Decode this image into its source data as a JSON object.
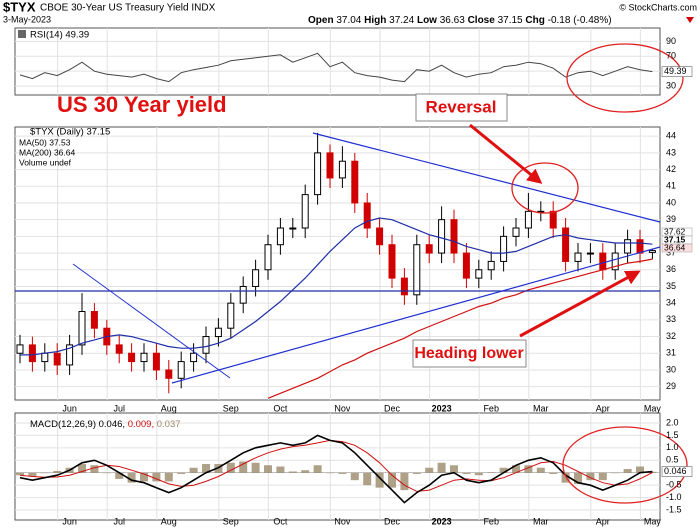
{
  "chart_data": {
    "type": "candlestick",
    "symbol": "$TYX",
    "title": "CBOE 30-Year US Treasury Yield INDX",
    "source": "© StockCharts.com",
    "date": "3-May-2023",
    "quote": [
      {
        "label": "Open",
        "value": 37.04
      },
      {
        "label": "High",
        "value": 37.24
      },
      {
        "label": "Low",
        "value": 36.63
      },
      {
        "label": "Close",
        "value": 37.15
      },
      {
        "label": "Chg",
        "value": "-0.18 (-0.48%)"
      }
    ],
    "categories": [
      null,
      null,
      null,
      null,
      "Jun",
      null,
      null,
      null,
      "Jul",
      null,
      null,
      null,
      "Aug",
      null,
      null,
      null,
      null,
      "Sep",
      null,
      null,
      null,
      "Oct",
      null,
      null,
      null,
      null,
      "Nov",
      null,
      null,
      null,
      "Dec",
      null,
      null,
      null,
      "2023",
      null,
      null,
      null,
      "Feb",
      null,
      null,
      null,
      "Mar",
      null,
      null,
      null,
      null,
      "Apr",
      null,
      null,
      null,
      "May"
    ],
    "open": [
      31.0,
      31.5,
      30.5,
      31.0,
      30.3,
      31.5,
      33.5,
      32.5,
      31.5,
      31.0,
      30.5,
      31.0,
      30.0,
      29.5,
      30.5,
      31.0,
      32.0,
      32.5,
      34.0,
      35.0,
      36.0,
      37.5,
      38.5,
      38.5,
      40.5,
      43.0,
      41.5,
      42.5,
      40.0,
      38.5,
      37.5,
      35.5,
      34.5,
      37.5,
      37.0,
      39.0,
      37.0,
      35.5,
      36.0,
      36.5,
      38.0,
      38.5,
      39.5,
      39.5,
      38.5,
      36.5,
      37.0,
      37.0,
      36.0,
      37.0,
      37.8,
      37.04
    ],
    "high": [
      32.1,
      32.0,
      31.6,
      31.6,
      32.1,
      34.6,
      34.0,
      33.0,
      32.1,
      31.6,
      31.6,
      31.6,
      30.6,
      31.1,
      31.6,
      32.6,
      33.1,
      34.6,
      35.6,
      36.6,
      38.1,
      39.1,
      39.1,
      41.1,
      44.2,
      43.5,
      43.4,
      43.0,
      40.6,
      39.1,
      38.1,
      36.1,
      38.1,
      38.1,
      39.8,
      39.6,
      37.6,
      36.6,
      37.1,
      38.6,
      39.1,
      40.6,
      40.1,
      40.1,
      39.1,
      37.6,
      37.6,
      37.6,
      37.6,
      38.4,
      38.4,
      37.24
    ],
    "low": [
      30.4,
      29.9,
      29.9,
      29.7,
      29.7,
      30.9,
      31.9,
      30.9,
      30.4,
      29.9,
      29.9,
      29.4,
      28.6,
      28.9,
      29.9,
      30.4,
      31.4,
      31.9,
      33.4,
      34.4,
      35.4,
      36.9,
      37.9,
      37.9,
      39.9,
      40.9,
      40.9,
      39.4,
      37.9,
      36.9,
      34.9,
      33.9,
      33.9,
      36.4,
      36.4,
      36.4,
      34.9,
      34.9,
      35.4,
      35.9,
      37.4,
      37.9,
      38.9,
      37.9,
      35.9,
      35.9,
      36.4,
      35.4,
      35.4,
      36.4,
      36.4,
      36.63
    ],
    "close": [
      31.5,
      30.5,
      31.0,
      30.3,
      31.5,
      33.5,
      32.5,
      31.5,
      31.0,
      30.5,
      31.0,
      30.0,
      29.5,
      30.5,
      31.0,
      32.0,
      32.5,
      34.0,
      35.0,
      36.0,
      37.5,
      38.5,
      38.5,
      40.5,
      43.0,
      41.5,
      42.5,
      40.0,
      38.5,
      37.5,
      35.5,
      34.5,
      37.5,
      37.0,
      39.0,
      37.0,
      35.5,
      36.0,
      36.5,
      38.0,
      38.5,
      39.5,
      39.5,
      38.5,
      36.5,
      37.0,
      37.0,
      36.0,
      37.0,
      37.8,
      37.0,
      37.15
    ],
    "up_color": "#000000",
    "down_color": "#d00000",
    "price_legend": "$TYX (Daily) 37.15",
    "volume_label": "Volume undef",
    "series": [
      {
        "name": "MA(50) 37.53",
        "color": "#1f2fa8",
        "values": [
          30.9,
          30.9,
          31.0,
          31.1,
          31.3,
          31.6,
          31.8,
          32.0,
          32.1,
          32.0,
          31.8,
          31.6,
          31.4,
          31.3,
          31.3,
          31.4,
          31.6,
          31.9,
          32.4,
          32.9,
          33.5,
          34.1,
          34.8,
          35.5,
          36.3,
          37.1,
          37.8,
          38.5,
          38.9,
          39.1,
          39.0,
          38.7,
          38.4,
          38.1,
          37.9,
          37.7,
          37.4,
          37.2,
          37.0,
          37.0,
          37.1,
          37.4,
          37.7,
          38.0,
          38.1,
          37.9,
          37.8,
          37.7,
          37.6,
          37.6,
          37.6,
          37.53
        ]
      },
      {
        "name": "MA(200) 36.64",
        "color": "#d01010",
        "values": [
          null,
          null,
          null,
          null,
          null,
          null,
          null,
          null,
          null,
          null,
          null,
          null,
          null,
          null,
          null,
          null,
          null,
          null,
          null,
          null,
          28.3,
          28.6,
          28.9,
          29.2,
          29.5,
          29.9,
          30.3,
          30.6,
          31.0,
          31.3,
          31.6,
          31.9,
          32.3,
          32.6,
          32.9,
          33.2,
          33.5,
          33.8,
          34.0,
          34.3,
          34.5,
          34.8,
          35.0,
          35.2,
          35.4,
          35.6,
          35.8,
          36.0,
          36.2,
          36.4,
          36.5,
          36.64
        ]
      }
    ],
    "ylim": [
      28.2,
      44.55
    ],
    "yticks": [
      29,
      30,
      31,
      32,
      33,
      34,
      35,
      36,
      37,
      38,
      39,
      40,
      41,
      42,
      43,
      44
    ],
    "price_labels": [
      "37.62",
      "37.15",
      "36.64"
    ],
    "annotations": [
      "US 30 Year yield",
      "Reversal",
      "Heading lower"
    ],
    "rsi": {
      "type": "line",
      "label": "RSI(14) 49.39",
      "color": "#444444",
      "values": [
        45,
        40,
        48,
        44,
        52,
        62,
        50,
        46,
        44,
        42,
        46,
        40,
        36,
        48,
        52,
        55,
        58,
        64,
        66,
        68,
        70,
        72,
        62,
        68,
        74,
        56,
        62,
        48,
        44,
        42,
        38,
        36,
        52,
        50,
        58,
        48,
        42,
        46,
        48,
        56,
        58,
        62,
        60,
        54,
        42,
        48,
        50,
        44,
        50,
        56,
        52,
        49.39
      ],
      "value_label": "49.39",
      "ylim": [
        18,
        108
      ],
      "yticks": [
        30,
        50,
        70,
        90
      ]
    },
    "macd": {
      "type": "macd",
      "label": "MACD(12,26,9) 0.046,",
      "signal_label": "0.009,",
      "histogram_label": "0.037",
      "macd_color": "#000000",
      "signal_color": "#d01010",
      "histogram_color": "#9a8a6a",
      "macd": [
        -0.2,
        -0.3,
        -0.2,
        -0.1,
        0.1,
        0.4,
        0.5,
        0.3,
        0.0,
        -0.3,
        -0.4,
        -0.6,
        -0.8,
        -0.6,
        -0.3,
        0.0,
        0.2,
        0.5,
        0.8,
        1.0,
        1.1,
        1.2,
        1.1,
        1.2,
        1.5,
        1.3,
        1.2,
        0.8,
        0.3,
        -0.2,
        -0.7,
        -1.2,
        -0.8,
        -0.5,
        -0.1,
        0.0,
        -0.3,
        -0.4,
        -0.3,
        0.0,
        0.3,
        0.5,
        0.6,
        0.4,
        -0.1,
        -0.4,
        -0.5,
        -0.7,
        -0.5,
        -0.3,
        0.0,
        0.046
      ],
      "signal": [
        -0.1,
        -0.15,
        -0.18,
        -0.17,
        -0.1,
        0.05,
        0.2,
        0.3,
        0.25,
        0.1,
        -0.05,
        -0.25,
        -0.45,
        -0.55,
        -0.5,
        -0.35,
        -0.15,
        0.1,
        0.35,
        0.6,
        0.8,
        0.95,
        1.05,
        1.1,
        1.2,
        1.3,
        1.25,
        1.1,
        0.8,
        0.4,
        -0.1,
        -0.5,
        -0.75,
        -0.7,
        -0.5,
        -0.3,
        -0.25,
        -0.3,
        -0.32,
        -0.2,
        0.0,
        0.2,
        0.4,
        0.45,
        0.3,
        0.05,
        -0.2,
        -0.4,
        -0.5,
        -0.45,
        -0.25,
        0.009
      ],
      "histogram": [
        -0.1,
        -0.15,
        -0.02,
        0.07,
        0.2,
        0.35,
        0.3,
        0,
        -0.25,
        -0.4,
        -0.35,
        -0.35,
        -0.35,
        -0.05,
        0.2,
        0.35,
        0.35,
        0.4,
        0.45,
        0.4,
        0.3,
        0.25,
        0.05,
        0.1,
        0.3,
        0,
        -0.05,
        -0.3,
        -0.5,
        -0.6,
        -0.6,
        -0.7,
        -0.05,
        0.2,
        0.4,
        0.3,
        -0.05,
        -0.1,
        0.02,
        0.2,
        0.3,
        0.3,
        0.2,
        -0.05,
        -0.4,
        -0.45,
        -0.3,
        -0.3,
        0,
        0.15,
        0.25,
        0.037
      ],
      "value_label": "0.046",
      "ylim": [
        -1.9,
        2.4
      ],
      "yticks": [
        {
          "value": 2,
          "label": "2.0"
        },
        1.5,
        {
          "value": 1,
          "label": "1.0"
        },
        0.5,
        -0.5,
        {
          "value": -1,
          "label": "-1.0"
        },
        -1.5
      ]
    }
  }
}
